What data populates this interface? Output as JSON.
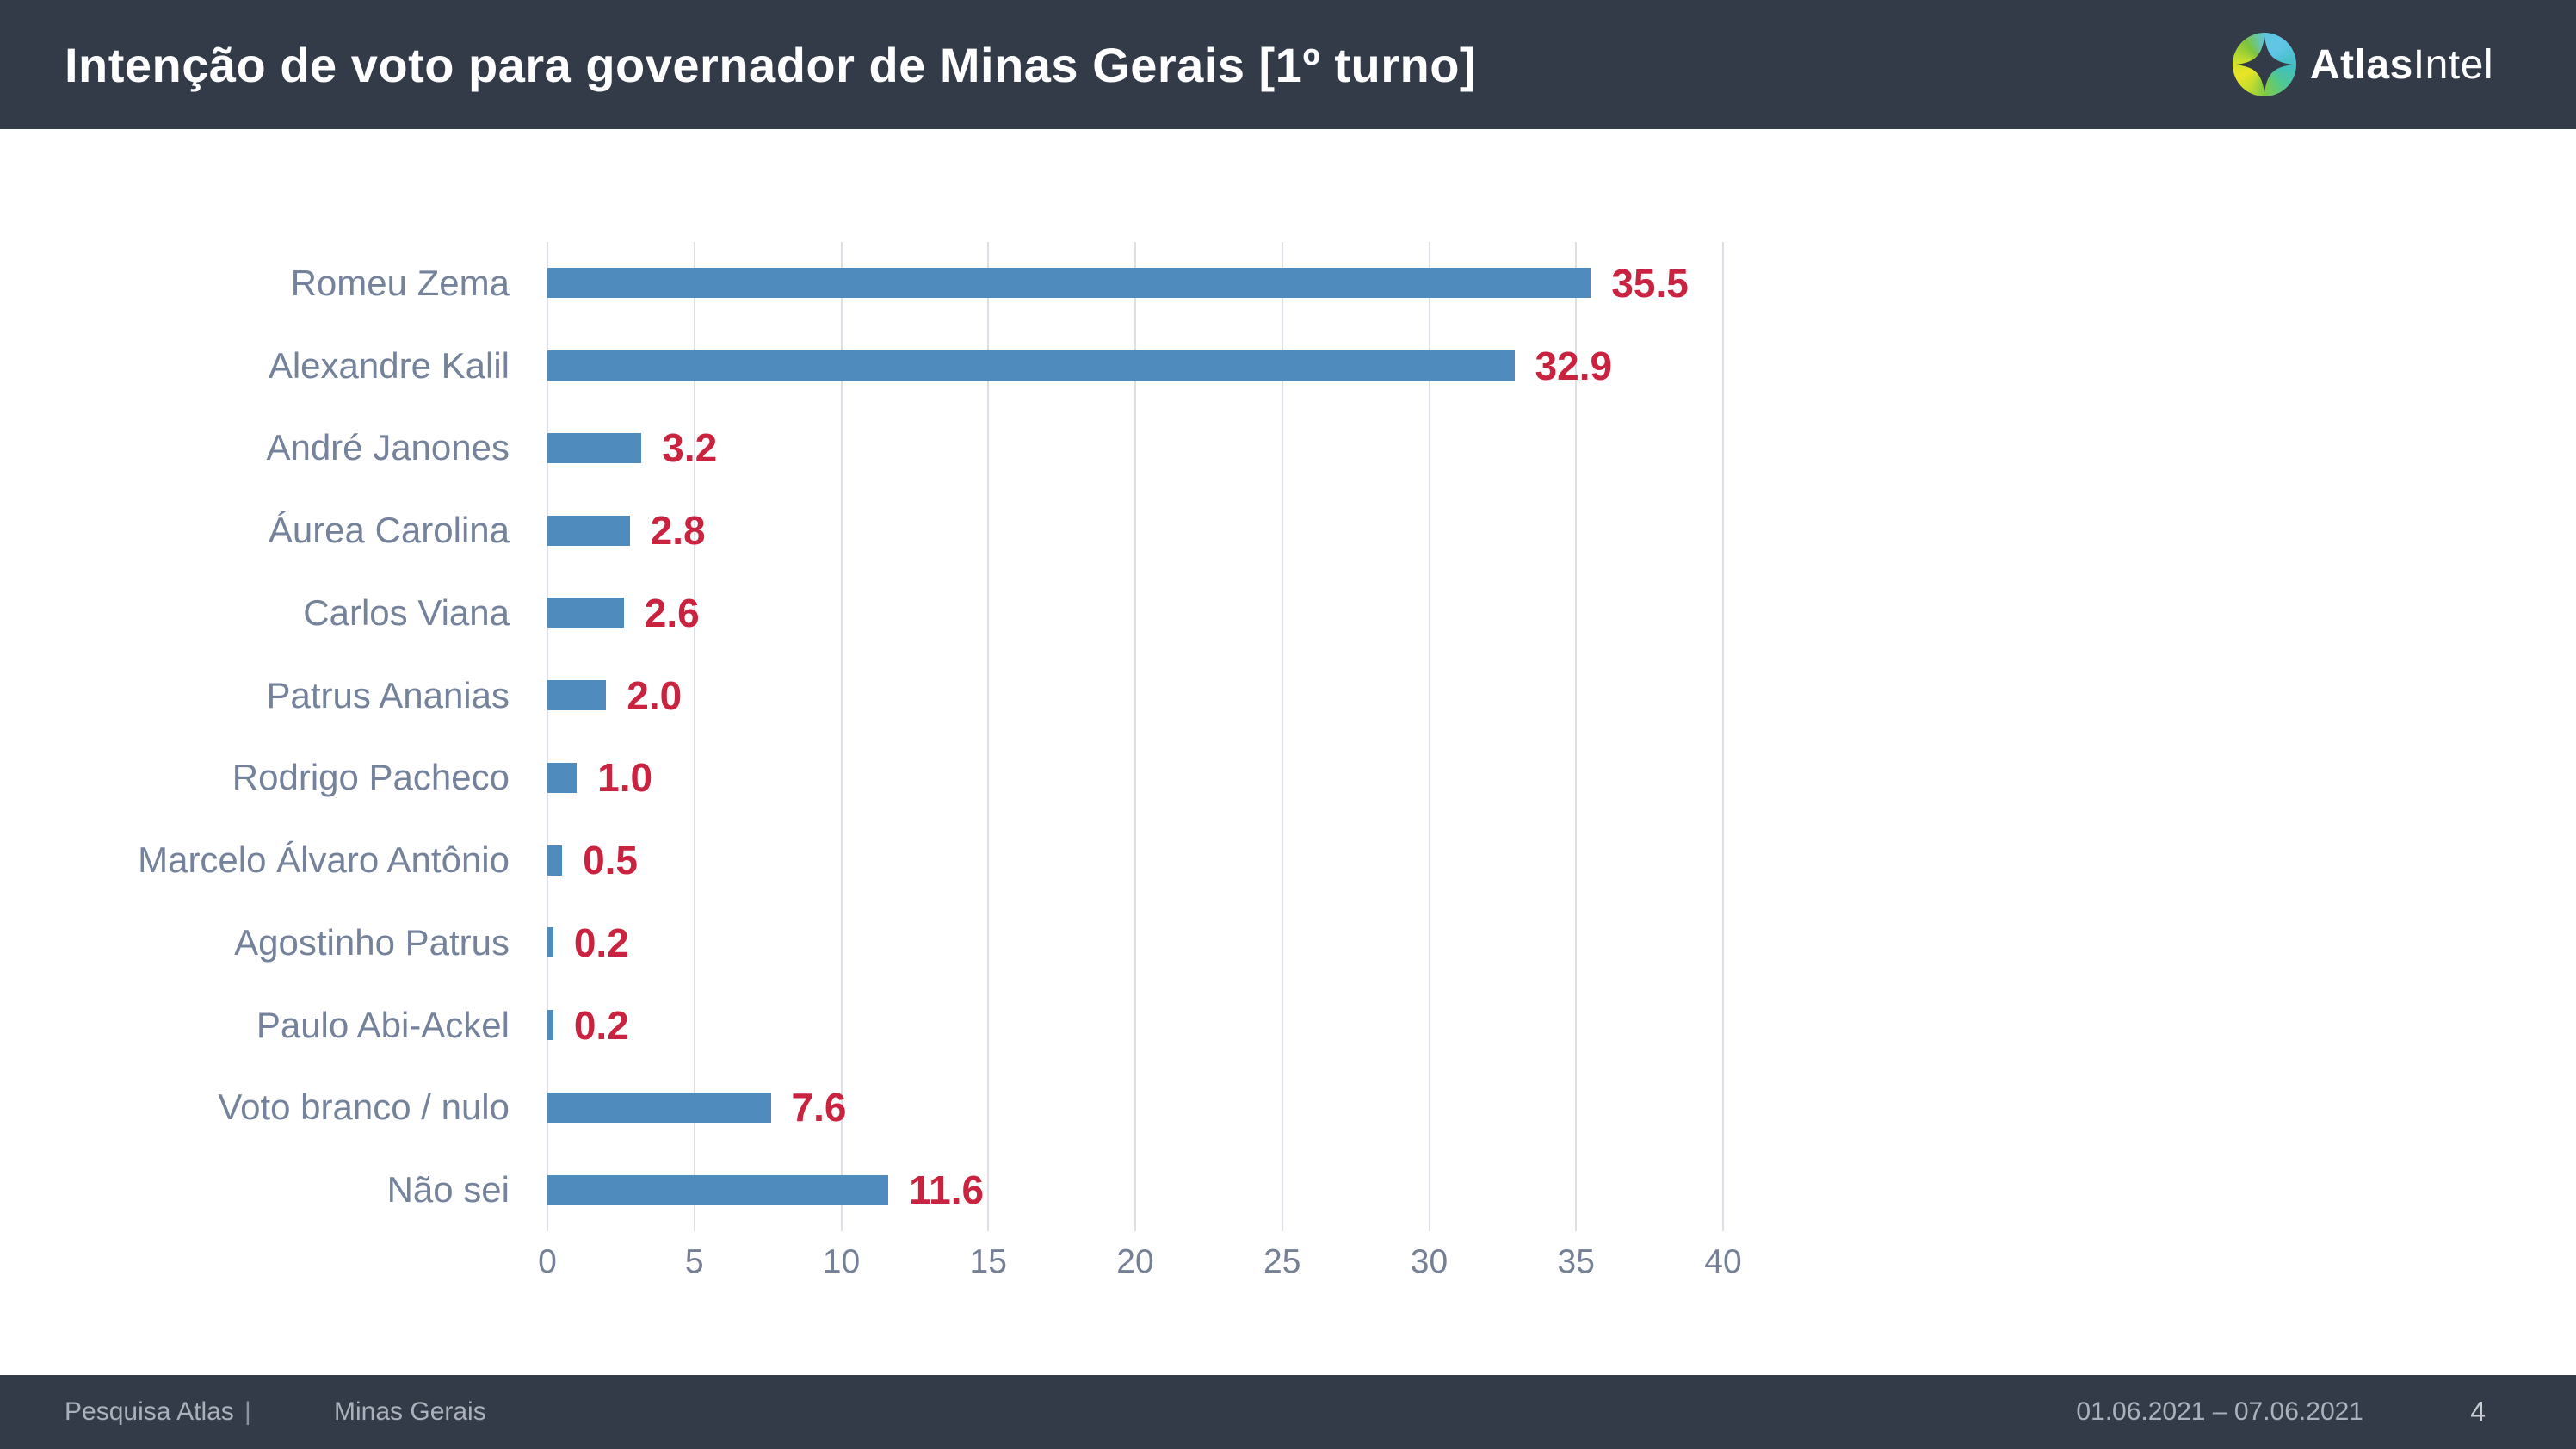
{
  "header": {
    "title": "Intenção de voto para governador de Minas Gerais [1º turno]",
    "logo": {
      "bold": "Atlas",
      "regular": "Intel"
    }
  },
  "chart_data": {
    "type": "bar",
    "orientation": "horizontal",
    "title": "",
    "xlabel": "",
    "ylabel": "",
    "categories": [
      "Romeu Zema",
      "Alexandre Kalil",
      "André Janones",
      "Áurea Carolina",
      "Carlos Viana",
      "Patrus Ananias",
      "Rodrigo Pacheco",
      "Marcelo Álvaro Antônio",
      "Agostinho Patrus",
      "Paulo Abi-Ackel",
      "Voto branco / nulo",
      "Não sei"
    ],
    "values": [
      35.5,
      32.9,
      3.2,
      2.8,
      2.6,
      2.0,
      1.0,
      0.5,
      0.2,
      0.2,
      7.6,
      11.6
    ],
    "value_decimals": 1,
    "xlim": [
      0,
      40
    ],
    "xticks": [
      0,
      5,
      10,
      15,
      20,
      25,
      30,
      35,
      40
    ],
    "grid": true,
    "legend": false,
    "bar_color": "#4f8bbc",
    "value_label_color": "#c9233f",
    "category_label_color": "#75829b"
  },
  "footer": {
    "source": "Pesquisa Atlas",
    "separator": "|",
    "region": "Minas Gerais",
    "date_range": "01.06.2021 – 07.06.2021",
    "page_number": "4"
  },
  "colors": {
    "header_bg": "#333b49",
    "white": "#ffffff",
    "bar_blue": "#4f8bbc",
    "value_red": "#c9233f",
    "label_gray_blue": "#75829b",
    "tick_gray": "#757f96",
    "grid_gray": "#dcdfe5",
    "footer_text": "#abb1bb",
    "logo_yellow": "#e9e426",
    "logo_green": "#7cc43e",
    "logo_blue": "#62c5e8",
    "logo_teal": "#40bfc0"
  }
}
